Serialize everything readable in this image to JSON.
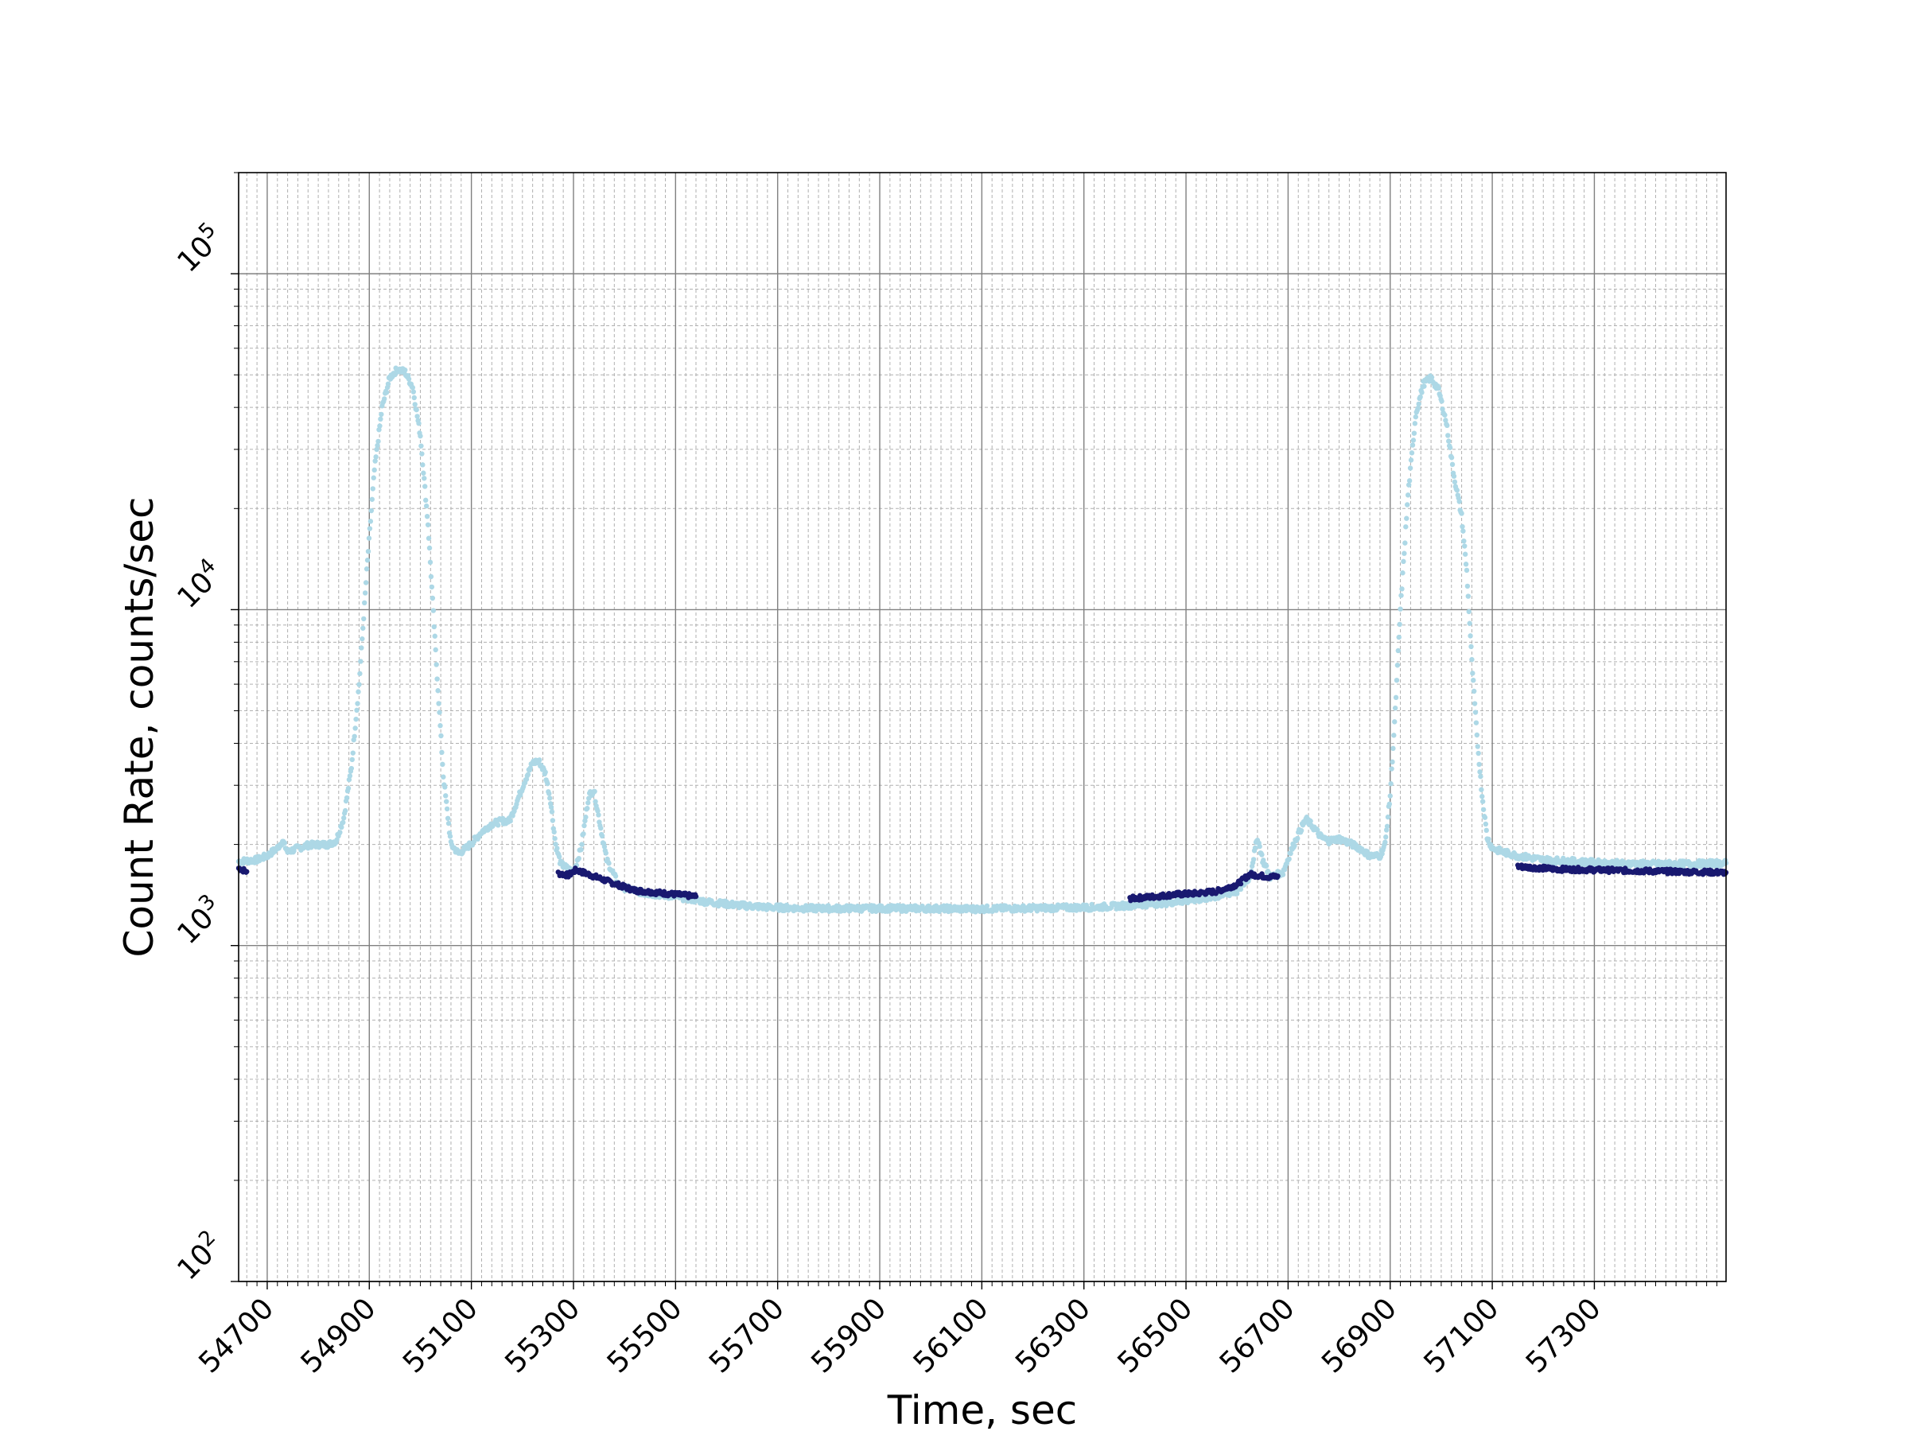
{
  "chart_data": {
    "type": "scatter",
    "xlabel": "Time, sec",
    "ylabel": "Count Rate, counts/sec",
    "y_scale": "log",
    "xlim": [
      54644,
      57558
    ],
    "ylim": [
      100,
      200000
    ],
    "x_ticks": [
      54700,
      54900,
      55100,
      55300,
      55500,
      55700,
      55900,
      56100,
      56300,
      56500,
      56700,
      56900,
      57100,
      57300
    ],
    "x_tick_labels": [
      "54700",
      "54900",
      "55100",
      "55300",
      "55500",
      "55700",
      "55900",
      "56100",
      "56300",
      "56500",
      "56700",
      "56900",
      "57100",
      "57300"
    ],
    "y_ticks": [
      {
        "value": 100,
        "base": "10",
        "exp": "2"
      },
      {
        "value": 1000,
        "base": "10",
        "exp": "3"
      },
      {
        "value": 10000,
        "base": "10",
        "exp": "4"
      },
      {
        "value": 100000,
        "base": "10",
        "exp": "5"
      }
    ],
    "grid": {
      "major": true,
      "minor": true
    },
    "colors": {
      "light": "#add8e6",
      "dark": "#191970",
      "grid_major": "#808080",
      "grid_minor": "#b0b0b0"
    },
    "series": [
      {
        "color": "#add8e6",
        "points": [
          [
            54644,
            1780
          ],
          [
            54680,
            1800
          ],
          [
            54700,
            1850
          ],
          [
            54720,
            1950
          ],
          [
            54730,
            2050
          ],
          [
            54740,
            1900
          ],
          [
            54760,
            1950
          ],
          [
            54780,
            1990
          ],
          [
            54800,
            2000
          ],
          [
            54820,
            2000
          ],
          [
            54835,
            2050
          ],
          [
            54850,
            2400
          ],
          [
            54865,
            3400
          ],
          [
            54880,
            6000
          ],
          [
            54895,
            13000
          ],
          [
            54910,
            26000
          ],
          [
            54925,
            40000
          ],
          [
            54940,
            49000
          ],
          [
            54955,
            52000
          ],
          [
            54970,
            51000
          ],
          [
            54985,
            46000
          ],
          [
            55000,
            33000
          ],
          [
            55015,
            18000
          ],
          [
            55030,
            7500
          ],
          [
            55045,
            3200
          ],
          [
            55060,
            2000
          ],
          [
            55075,
            1880
          ],
          [
            55090,
            1950
          ],
          [
            55105,
            2050
          ],
          [
            55120,
            2180
          ],
          [
            55140,
            2300
          ],
          [
            55160,
            2350
          ],
          [
            55175,
            2350
          ],
          [
            55190,
            2700
          ],
          [
            55205,
            3100
          ],
          [
            55220,
            3500
          ],
          [
            55232,
            3550
          ],
          [
            55245,
            3250
          ],
          [
            55255,
            2700
          ],
          [
            55265,
            2000
          ],
          [
            55275,
            1750
          ],
          [
            55300,
            1650
          ],
          [
            55315,
            1950
          ],
          [
            55330,
            2800
          ],
          [
            55340,
            2900
          ],
          [
            55352,
            2300
          ],
          [
            55365,
            1800
          ],
          [
            55390,
            1500
          ],
          [
            55440,
            1430
          ],
          [
            55500,
            1400
          ],
          [
            55560,
            1350
          ],
          [
            55620,
            1320
          ],
          [
            55680,
            1300
          ],
          [
            55760,
            1290
          ],
          [
            55840,
            1290
          ],
          [
            55920,
            1290
          ],
          [
            56000,
            1290
          ],
          [
            56080,
            1285
          ],
          [
            56160,
            1290
          ],
          [
            56240,
            1295
          ],
          [
            56320,
            1300
          ],
          [
            56400,
            1320
          ],
          [
            56460,
            1340
          ],
          [
            56520,
            1370
          ],
          [
            56560,
            1400
          ],
          [
            56600,
            1450
          ],
          [
            56625,
            1600
          ],
          [
            56640,
            2100
          ],
          [
            56650,
            1800
          ],
          [
            56665,
            1600
          ],
          [
            56690,
            1650
          ],
          [
            56705,
            1900
          ],
          [
            56720,
            2150
          ],
          [
            56735,
            2380
          ],
          [
            56750,
            2250
          ],
          [
            56765,
            2100
          ],
          [
            56780,
            2050
          ],
          [
            56800,
            2080
          ],
          [
            56820,
            2020
          ],
          [
            56840,
            1950
          ],
          [
            56860,
            1850
          ],
          [
            56880,
            1850
          ],
          [
            56890,
            2000
          ],
          [
            56900,
            2800
          ],
          [
            56910,
            5000
          ],
          [
            56920,
            10000
          ],
          [
            56935,
            22000
          ],
          [
            56950,
            38000
          ],
          [
            56965,
            47000
          ],
          [
            56980,
            49000
          ],
          [
            56995,
            45000
          ],
          [
            57010,
            36000
          ],
          [
            57025,
            25000
          ],
          [
            57040,
            19000
          ],
          [
            57050,
            13000
          ],
          [
            57060,
            7000
          ],
          [
            57070,
            4200
          ],
          [
            57080,
            2800
          ],
          [
            57090,
            2100
          ],
          [
            57100,
            1950
          ],
          [
            57120,
            1900
          ],
          [
            57150,
            1850
          ],
          [
            57200,
            1800
          ],
          [
            57260,
            1780
          ],
          [
            57320,
            1760
          ],
          [
            57400,
            1750
          ],
          [
            57480,
            1750
          ],
          [
            57558,
            1760
          ]
        ]
      },
      {
        "color": "#191970",
        "points": [
          [
            54644,
            1700
          ],
          [
            54660,
            1660
          ],
          [
            55270,
            1640
          ],
          [
            55290,
            1620
          ],
          [
            55305,
            1680
          ],
          [
            55385,
            1520
          ],
          [
            55420,
            1460
          ],
          [
            55460,
            1440
          ],
          [
            55500,
            1420
          ],
          [
            55540,
            1400
          ],
          [
            56390,
            1380
          ],
          [
            56440,
            1400
          ],
          [
            56480,
            1420
          ],
          [
            56520,
            1430
          ],
          [
            56560,
            1450
          ],
          [
            56600,
            1520
          ],
          [
            56625,
            1630
          ],
          [
            56665,
            1600
          ],
          [
            56680,
            1610
          ],
          [
            57150,
            1720
          ],
          [
            57220,
            1690
          ],
          [
            57300,
            1680
          ],
          [
            57380,
            1670
          ],
          [
            57460,
            1660
          ],
          [
            57558,
            1650
          ]
        ]
      }
    ]
  }
}
